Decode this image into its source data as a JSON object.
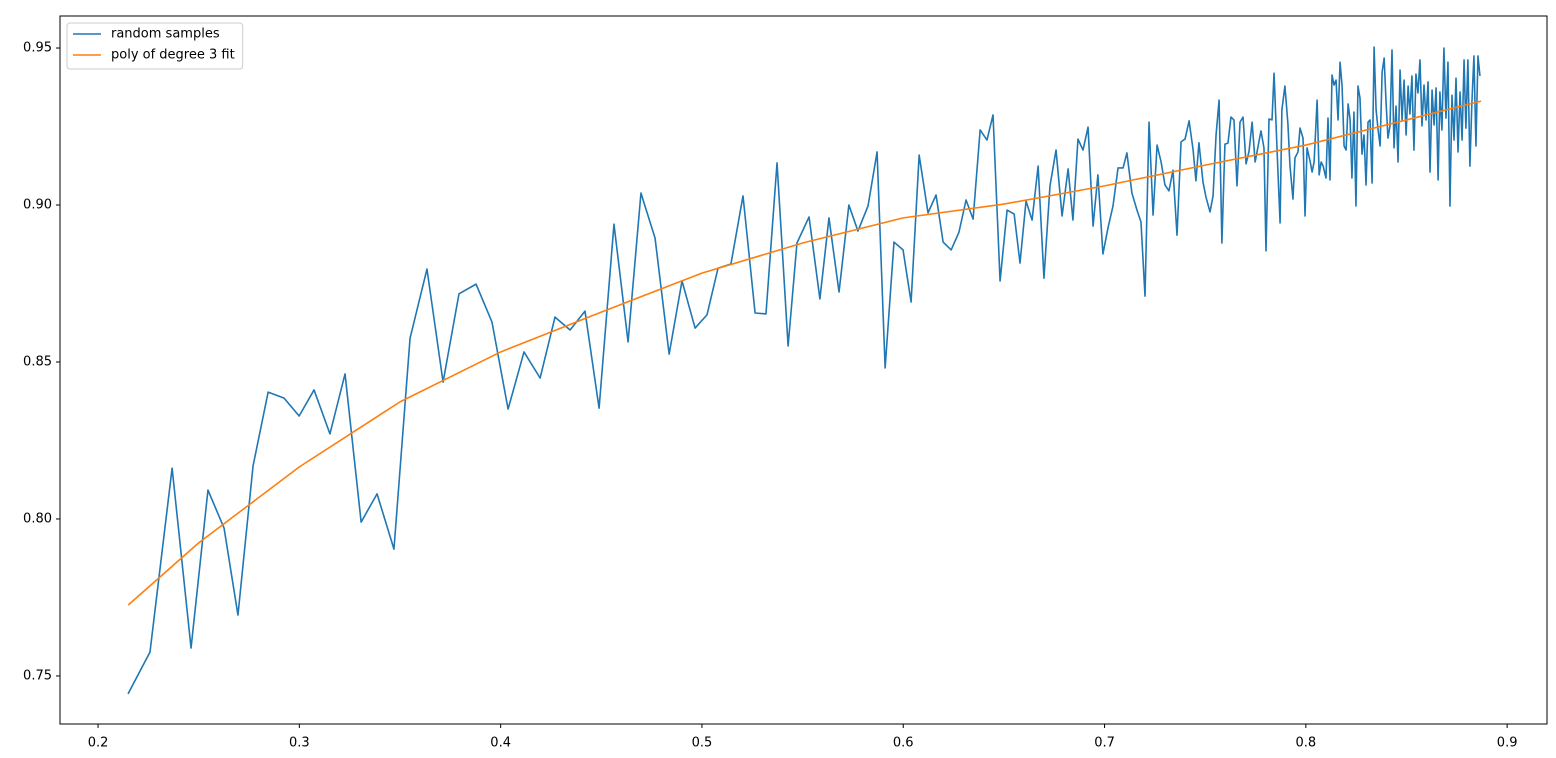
{
  "chart_data": {
    "type": "line",
    "xlim": [
      0.1811,
      0.9198
    ],
    "ylim": [
      0.7347,
      0.9602
    ],
    "xticks": [
      0.2,
      0.3,
      0.4,
      0.5,
      0.6,
      0.7,
      0.8,
      0.9
    ],
    "yticks": [
      0.75,
      {
        "value": 0.8,
        "label": "0.80"
      },
      0.85,
      {
        "value": 0.9,
        "label": "0.90"
      },
      0.95
    ],
    "legend": "upper left",
    "series": [
      {
        "name": "random samples",
        "color": "#1f77b4",
        "x": [
          0.2149,
          0.2258,
          0.2368,
          0.2462,
          0.2546,
          0.2626,
          0.2695,
          0.277,
          0.2845,
          0.2924,
          0.2999,
          0.3073,
          0.3152,
          0.3227,
          0.3307,
          0.3386,
          0.347,
          0.355,
          0.3634,
          0.3714,
          0.3793,
          0.3878,
          0.3957,
          0.4037,
          0.4116,
          0.4196,
          0.427,
          0.4345,
          0.4419,
          0.4489,
          0.4563,
          0.4633,
          0.4697,
          0.4767,
          0.4837,
          0.4901,
          0.4966,
          0.5025,
          0.508,
          0.5144,
          0.5204,
          0.5264,
          0.5318,
          0.5373,
          0.5428,
          0.5472,
          0.5532,
          0.5586,
          0.5631,
          0.5681,
          0.573,
          0.5775,
          0.5825,
          0.587,
          0.591,
          0.5954,
          0.5999,
          0.6039,
          0.6079,
          0.6123,
          0.6163,
          0.6198,
          0.6238,
          0.6277,
          0.6312,
          0.6347,
          0.6382,
          0.6416,
          0.6446,
          0.6481,
          0.6516,
          0.6551,
          0.658,
          0.661,
          0.664,
          0.667,
          0.6699,
          0.6729,
          0.6759,
          0.6789,
          0.6819,
          0.6843,
          0.6868,
          0.6893,
          0.6918,
          0.6943,
          0.6967,
          0.6992,
          0.7017,
          0.7042,
          0.7067,
          0.7092,
          0.7111,
          0.7136,
          0.7161,
          0.7181,
          0.7201,
          0.7221,
          0.7241,
          0.7261,
          0.7281,
          0.73,
          0.732,
          0.734,
          0.736,
          0.738,
          0.74,
          0.742,
          0.744,
          0.7454,
          0.7469,
          0.7489,
          0.7504,
          0.7524,
          0.7539,
          0.7554,
          0.7569,
          0.7583,
          0.7598,
          0.7613,
          0.7628,
          0.7643,
          0.7658,
          0.7673,
          0.7688,
          0.7703,
          0.7718,
          0.7733,
          0.7748,
          0.7763,
          0.7777,
          0.7792,
          0.7802,
          0.7817,
          0.7832,
          0.7842,
          0.7857,
          0.7872,
          0.7881,
          0.7896,
          0.7911,
          0.7921,
          0.7936,
          0.7946,
          0.7961,
          0.7971,
          0.7986,
          0.7996,
          0.8006,
          0.8021,
          0.8031,
          0.8041,
          0.8056,
          0.8066,
          0.8076,
          0.8086,
          0.81,
          0.811,
          0.812,
          0.813,
          0.814,
          0.815,
          0.816,
          0.817,
          0.818,
          0.819,
          0.82,
          0.821,
          0.822,
          0.8229,
          0.8239,
          0.8249,
          0.8259,
          0.8269,
          0.8279,
          0.8289,
          0.8299,
          0.8309,
          0.8319,
          0.8329,
          0.8339,
          0.8349,
          0.8359,
          0.8369,
          0.8379,
          0.8389,
          0.8398,
          0.8408,
          0.8418,
          0.8428,
          0.8438,
          0.8448,
          0.8458,
          0.8468,
          0.8478,
          0.8488,
          0.8498,
          0.8508,
          0.8517,
          0.8527,
          0.8537,
          0.8547,
          0.8557,
          0.8567,
          0.8577,
          0.8587,
          0.8597,
          0.8607,
          0.8617,
          0.8627,
          0.8637,
          0.8647,
          0.8657,
          0.8666,
          0.8676,
          0.8686,
          0.8696,
          0.8706,
          0.8716,
          0.8726,
          0.8736,
          0.8746,
          0.8756,
          0.8766,
          0.8776,
          0.8786,
          0.8795,
          0.8805,
          0.8815,
          0.8825,
          0.8835,
          0.8845,
          0.8855,
          0.8865
        ],
        "values": [
          0.7443,
          0.7576,
          0.8162,
          0.7589,
          0.8092,
          0.7971,
          0.7694,
          0.8169,
          0.8404,
          0.8385,
          0.8328,
          0.8411,
          0.8271,
          0.8462,
          0.799,
          0.808,
          0.7904,
          0.8576,
          0.8796,
          0.8436,
          0.8717,
          0.8748,
          0.8627,
          0.835,
          0.8532,
          0.8449,
          0.8643,
          0.8602,
          0.8662,
          0.8353,
          0.8939,
          0.8564,
          0.9038,
          0.8895,
          0.8525,
          0.8758,
          0.8608,
          0.865,
          0.8799,
          0.8812,
          0.9029,
          0.8656,
          0.8653,
          0.9134,
          0.8551,
          0.8879,
          0.8962,
          0.8701,
          0.8959,
          0.8723,
          0.9,
          0.8917,
          0.8997,
          0.9169,
          0.8481,
          0.8882,
          0.8857,
          0.8691,
          0.9159,
          0.8975,
          0.9032,
          0.8882,
          0.8857,
          0.8914,
          0.9016,
          0.8955,
          0.9239,
          0.9207,
          0.9287,
          0.8758,
          0.8984,
          0.8971,
          0.8815,
          0.9013,
          0.8952,
          0.9124,
          0.8767,
          0.9061,
          0.9175,
          0.8965,
          0.9115,
          0.8952,
          0.921,
          0.9175,
          0.9248,
          0.8933,
          0.9096,
          0.8844,
          0.8927,
          0.8997,
          0.9118,
          0.9118,
          0.9166,
          0.9038,
          0.8984,
          0.8946,
          0.871,
          0.9264,
          0.8968,
          0.9191,
          0.9137,
          0.9064,
          0.9045,
          0.9111,
          0.8904,
          0.9201,
          0.921,
          0.9268,
          0.9175,
          0.9077,
          0.9198,
          0.9073,
          0.9025,
          0.8978,
          0.9029,
          0.9223,
          0.9334,
          0.8879,
          0.9194,
          0.9197,
          0.928,
          0.9271,
          0.9061,
          0.9264,
          0.928,
          0.9131,
          0.9172,
          0.9264,
          0.9137,
          0.9188,
          0.9236,
          0.9182,
          0.8854,
          0.9274,
          0.9271,
          0.942,
          0.9175,
          0.8943,
          0.9303,
          0.9379,
          0.9258,
          0.9127,
          0.9019,
          0.915,
          0.9169,
          0.9245,
          0.9213,
          0.8965,
          0.9182,
          0.914,
          0.9105,
          0.9137,
          0.9334,
          0.9096,
          0.9137,
          0.9124,
          0.9086,
          0.9277,
          0.908,
          0.9414,
          0.9382,
          0.9398,
          0.9271,
          0.9455,
          0.9379,
          0.9188,
          0.9175,
          0.9322,
          0.9271,
          0.9086,
          0.9296,
          0.8997,
          0.9379,
          0.9341,
          0.9162,
          0.9223,
          0.9064,
          0.9264,
          0.9271,
          0.907,
          0.9503,
          0.9303,
          0.9239,
          0.9188,
          0.9424,
          0.9468,
          0.9334,
          0.9213,
          0.9252,
          0.9494,
          0.9182,
          0.9315,
          0.9137,
          0.943,
          0.9271,
          0.9398,
          0.9223,
          0.9379,
          0.929,
          0.9411,
          0.9175,
          0.9417,
          0.9357,
          0.9462,
          0.9252,
          0.9382,
          0.9271,
          0.9392,
          0.9105,
          0.9366,
          0.9255,
          0.9373,
          0.908,
          0.936,
          0.9239,
          0.95,
          0.9277,
          0.9455,
          0.8997,
          0.935,
          0.9207,
          0.9404,
          0.9169,
          0.936,
          0.9207,
          0.9462,
          0.9245,
          0.9462,
          0.9124,
          0.9328,
          0.9475,
          0.9188,
          0.9475,
          0.9411
        ]
      },
      {
        "name": "poly of degree 3 fit",
        "color": "#ff7f0e",
        "x": [
          0.215,
          0.25,
          0.3,
          0.35,
          0.4,
          0.45,
          0.5,
          0.55,
          0.6,
          0.65,
          0.7,
          0.75,
          0.8,
          0.85,
          0.887
        ],
        "values": [
          0.7726,
          0.7924,
          0.8166,
          0.8373,
          0.8532,
          0.8659,
          0.8783,
          0.8879,
          0.8959,
          0.9003,
          0.9061,
          0.9127,
          0.9191,
          0.9271,
          0.9331
        ]
      }
    ]
  }
}
